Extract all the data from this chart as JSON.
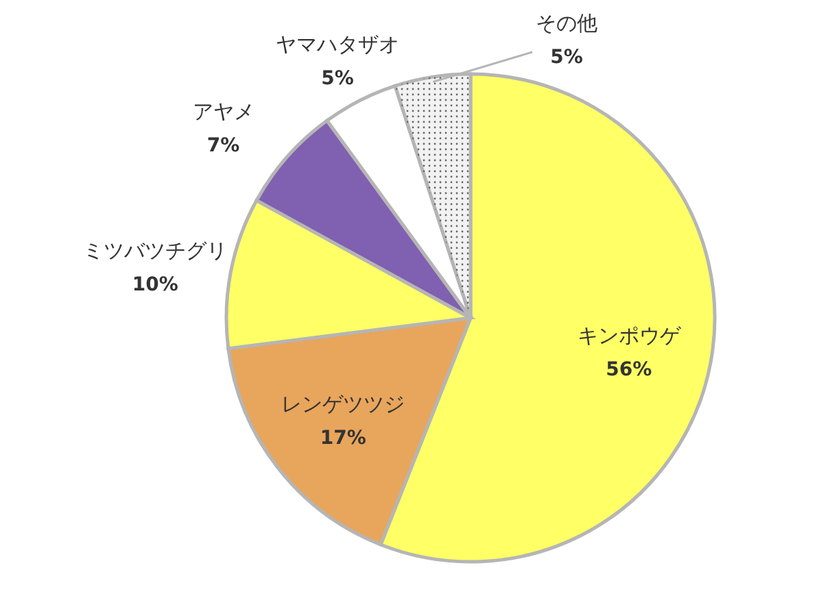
{
  "chart_data": {
    "type": "pie",
    "categories": [
      "キンポウゲ",
      "レンゲツツジ",
      "ミツバツチグリ",
      "アヤメ",
      "ヤマハタザオ",
      "その他"
    ],
    "values": [
      56,
      17,
      10,
      7,
      5,
      5
    ],
    "value_labels": [
      "56%",
      "17%",
      "10%",
      "7%",
      "5%",
      "5%"
    ],
    "colors": [
      "#ffff66",
      "#e8a55c",
      "#ffff66",
      "#8060b0",
      "#ffffff",
      "#f2f2f2"
    ]
  }
}
